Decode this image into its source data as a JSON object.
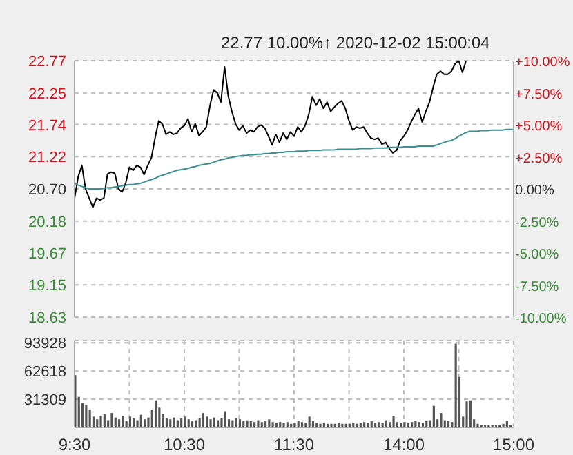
{
  "chart_data": [
    {
      "type": "line",
      "title": "22.77  10.00%↑  2020-12-02 15:00:04",
      "categories": [
        null,
        null,
        null,
        null,
        null,
        null,
        null,
        null,
        null,
        null,
        null,
        null,
        null,
        null,
        null,
        null,
        null,
        null,
        null,
        null,
        null,
        null,
        null,
        null,
        null,
        null,
        null,
        null,
        null,
        null,
        null,
        null,
        null,
        null,
        null,
        null,
        null,
        null,
        null,
        null,
        null,
        null,
        null,
        null,
        null,
        null,
        null,
        null,
        null,
        null,
        null,
        null,
        null,
        null,
        null,
        null,
        null,
        null,
        null,
        null,
        null,
        null,
        null,
        null,
        null,
        null,
        null,
        null,
        null,
        null,
        null,
        null,
        null,
        null,
        null,
        null,
        null,
        null,
        null,
        null,
        null,
        null,
        null,
        null,
        null,
        null,
        null,
        null,
        null,
        null,
        null,
        null,
        null,
        null,
        null,
        null,
        null,
        null,
        null,
        null,
        null,
        null,
        null,
        null,
        null,
        null,
        null,
        null,
        null,
        null,
        null,
        null,
        null,
        null,
        null,
        null,
        null,
        null,
        null,
        null,
        null
      ],
      "ylim": [
        18.63,
        22.77
      ],
      "yticks": [
        {
          "value": 18.63,
          "label": "18.63"
        },
        {
          "value": 19.15,
          "label": "19.15"
        },
        {
          "value": 19.67,
          "label": "19.67"
        },
        {
          "value": 20.18,
          "label": "20.18"
        },
        {
          "value": 20.7,
          "label": "20.70"
        },
        {
          "value": 21.22,
          "label": "21.22"
        },
        {
          "value": 21.74,
          "label": "21.74"
        },
        {
          "value": 22.25,
          "label": "22.25"
        },
        {
          "value": 22.77,
          "label": "22.77"
        }
      ],
      "y2lim": [
        -10,
        10
      ],
      "y2ticks": [
        {
          "value": -10,
          "label": "-10.00%"
        },
        {
          "value": -7.5,
          "label": "-7.50%"
        },
        {
          "value": -5,
          "label": "-5.00%"
        },
        {
          "value": -2.5,
          "label": "-2.50%"
        },
        {
          "value": 0,
          "label": "0.00%"
        },
        {
          "value": 2.5,
          "label": "+2.50%"
        },
        {
          "value": 5,
          "label": "+5.00%"
        },
        {
          "value": 7.5,
          "label": "+7.50%"
        },
        {
          "value": 10,
          "label": "+10.00%"
        }
      ],
      "grid": true,
      "tick_labels": "y",
      "marker": "none",
      "line_style": "solid",
      "series": [
        {
          "color": "#000000",
          "values": [
            20.55,
            20.9,
            21.08,
            20.7,
            20.55,
            20.4,
            20.55,
            20.52,
            20.55,
            20.94,
            20.97,
            20.95,
            20.7,
            20.65,
            20.8,
            21.05,
            21.0,
            21.08,
            21.05,
            20.93,
            21.08,
            21.2,
            21.52,
            21.8,
            21.75,
            21.58,
            21.62,
            21.58,
            21.6,
            21.68,
            21.72,
            21.83,
            21.62,
            21.75,
            21.56,
            21.62,
            21.7,
            22.04,
            22.3,
            22.25,
            22.1,
            22.67,
            22.2,
            21.95,
            21.75,
            21.65,
            21.72,
            21.6,
            21.65,
            21.62,
            21.7,
            21.73,
            21.68,
            21.55,
            21.41,
            21.58,
            21.45,
            21.6,
            21.5,
            21.62,
            21.55,
            21.7,
            21.62,
            21.72,
            21.9,
            22.19,
            22.05,
            22.15,
            22.0,
            22.1,
            21.95,
            22.02,
            22.08,
            22.12,
            22.0,
            21.8,
            21.65,
            21.7,
            21.68,
            21.7,
            21.6,
            21.52,
            21.5,
            21.52,
            21.42,
            21.45,
            21.35,
            21.28,
            21.32,
            21.48,
            21.55,
            21.65,
            21.78,
            21.9,
            22.0,
            21.78,
            21.95,
            22.1,
            22.34,
            22.55,
            22.6,
            22.55,
            22.55,
            22.6,
            22.72,
            22.77,
            22.58,
            22.77,
            22.77,
            22.77,
            22.77,
            22.77,
            22.77,
            22.77,
            22.77,
            22.77,
            22.77,
            22.77,
            22.77,
            22.77,
            22.77
          ]
        },
        {
          "color": "#3a8f8f",
          "values": [
            20.79,
            20.76,
            20.74,
            20.72,
            20.7,
            20.7,
            20.7,
            20.7,
            20.71,
            20.72,
            20.72,
            20.73,
            20.74,
            20.75,
            20.76,
            20.77,
            20.77,
            20.78,
            20.79,
            20.81,
            20.83,
            20.85,
            20.87,
            20.9,
            20.92,
            20.94,
            20.96,
            20.98,
            21.0,
            21.01,
            21.02,
            21.03,
            21.05,
            21.06,
            21.08,
            21.09,
            21.1,
            21.11,
            21.13,
            21.15,
            21.17,
            21.18,
            21.2,
            21.21,
            21.22,
            21.23,
            21.24,
            21.24,
            21.25,
            21.25,
            21.26,
            21.26,
            21.27,
            21.27,
            21.28,
            21.28,
            21.29,
            21.29,
            21.3,
            21.3,
            21.3,
            21.31,
            21.31,
            21.31,
            21.32,
            21.32,
            21.32,
            21.32,
            21.33,
            21.33,
            21.33,
            21.33,
            21.34,
            21.34,
            21.34,
            21.34,
            21.34,
            21.34,
            21.35,
            21.35,
            21.35,
            21.35,
            21.36,
            21.36,
            21.36,
            21.36,
            21.37,
            21.37,
            21.37,
            21.37,
            21.38,
            21.38,
            21.38,
            21.38,
            21.39,
            21.39,
            21.39,
            21.39,
            21.39,
            21.41,
            21.43,
            21.45,
            21.47,
            21.48,
            21.51,
            21.55,
            21.58,
            21.61,
            21.63,
            21.63,
            21.63,
            21.64,
            21.64,
            21.64,
            21.65,
            21.65,
            21.65,
            21.65,
            21.66,
            21.66,
            21.66
          ]
        }
      ]
    },
    {
      "type": "bar",
      "categories": [
        "9:30",
        null,
        null,
        null,
        null,
        null,
        null,
        null,
        null,
        null,
        null,
        null,
        null,
        null,
        null,
        null,
        null,
        null,
        null,
        null,
        null,
        null,
        null,
        null,
        null,
        null,
        null,
        null,
        null,
        null,
        "10:30",
        null,
        null,
        null,
        null,
        null,
        null,
        null,
        null,
        null,
        null,
        null,
        null,
        null,
        null,
        null,
        null,
        null,
        null,
        null,
        null,
        null,
        null,
        null,
        null,
        null,
        null,
        null,
        null,
        null,
        "11:30",
        null,
        null,
        null,
        null,
        null,
        null,
        null,
        null,
        null,
        null,
        null,
        null,
        null,
        null,
        null,
        null,
        null,
        null,
        null,
        null,
        null,
        null,
        null,
        null,
        null,
        null,
        null,
        null,
        null,
        "14:00",
        null,
        null,
        null,
        null,
        null,
        null,
        null,
        null,
        null,
        null,
        null,
        null,
        null,
        null,
        null,
        null,
        null,
        null,
        null,
        null,
        null,
        null,
        null,
        null,
        null,
        null,
        null,
        null,
        null,
        "15:00"
      ],
      "ylim": [
        0,
        96500
      ],
      "yticks": [
        31309,
        62618,
        93928
      ],
      "grid": true,
      "series": [
        {
          "color": "#555555",
          "values": [
            58000,
            34000,
            27000,
            25000,
            20000,
            12000,
            9000,
            13000,
            15000,
            8000,
            16000,
            11000,
            9000,
            13000,
            7000,
            12000,
            10000,
            8000,
            14000,
            9000,
            11000,
            20000,
            30000,
            22000,
            15000,
            10000,
            9000,
            11000,
            8000,
            10000,
            12000,
            9000,
            7000,
            8000,
            10000,
            16000,
            12000,
            9000,
            11000,
            8000,
            10000,
            18000,
            9000,
            8000,
            10000,
            9000,
            7000,
            8000,
            7000,
            6000,
            8000,
            6000,
            7000,
            9000,
            6000,
            5000,
            6000,
            5000,
            6000,
            4000,
            5000,
            7000,
            6000,
            5000,
            12000,
            7000,
            5000,
            4000,
            5000,
            4000,
            4000,
            4000,
            5000,
            4000,
            4000,
            4000,
            5000,
            4000,
            5000,
            6000,
            5000,
            7000,
            5000,
            6000,
            5000,
            8000,
            6000,
            13000,
            6000,
            5000,
            6000,
            5000,
            6000,
            7000,
            6000,
            5000,
            7000,
            8000,
            24000,
            9000,
            16000,
            8000,
            7000,
            6000,
            93000,
            56000,
            12000,
            29000,
            30000,
            9000,
            4000,
            3000,
            3000,
            3000,
            3000,
            3000,
            3000,
            4000,
            7000,
            3000,
            null
          ]
        }
      ]
    }
  ]
}
